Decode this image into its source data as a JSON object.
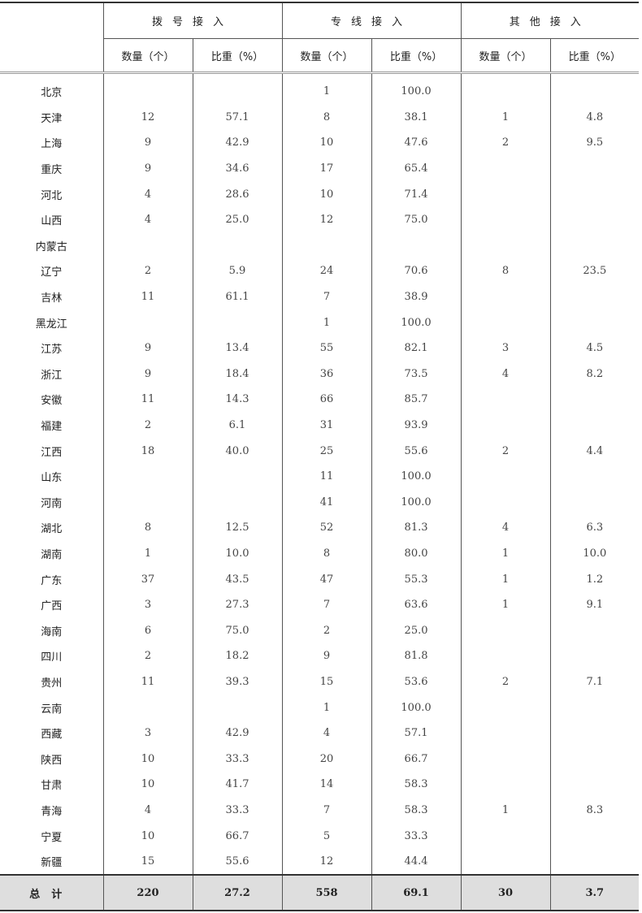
{
  "headers": {
    "groups": [
      "拨号接入",
      "专线接入",
      "其他接入"
    ],
    "sub": [
      "数量（个）",
      "比重（%）",
      "数量（个）",
      "比重（%）",
      "数量（个）",
      "比重（%）"
    ]
  },
  "rows": [
    [
      "北京",
      "",
      "",
      "1",
      "100.0",
      "",
      ""
    ],
    [
      "天津",
      "12",
      "57.1",
      "8",
      "38.1",
      "1",
      "4.8"
    ],
    [
      "上海",
      "9",
      "42.9",
      "10",
      "47.6",
      "2",
      "9.5"
    ],
    [
      "重庆",
      "9",
      "34.6",
      "17",
      "65.4",
      "",
      ""
    ],
    [
      "河北",
      "4",
      "28.6",
      "10",
      "71.4",
      "",
      ""
    ],
    [
      "山西",
      "4",
      "25.0",
      "12",
      "75.0",
      "",
      ""
    ],
    [
      "内蒙古",
      "",
      "",
      "",
      "",
      "",
      ""
    ],
    [
      "辽宁",
      "2",
      "5.9",
      "24",
      "70.6",
      "8",
      "23.5"
    ],
    [
      "吉林",
      "11",
      "61.1",
      "7",
      "38.9",
      "",
      ""
    ],
    [
      "黑龙江",
      "",
      "",
      "1",
      "100.0",
      "",
      ""
    ],
    [
      "江苏",
      "9",
      "13.4",
      "55",
      "82.1",
      "3",
      "4.5"
    ],
    [
      "浙江",
      "9",
      "18.4",
      "36",
      "73.5",
      "4",
      "8.2"
    ],
    [
      "安徽",
      "11",
      "14.3",
      "66",
      "85.7",
      "",
      ""
    ],
    [
      "福建",
      "2",
      "6.1",
      "31",
      "93.9",
      "",
      ""
    ],
    [
      "江西",
      "18",
      "40.0",
      "25",
      "55.6",
      "2",
      "4.4"
    ],
    [
      "山东",
      "",
      "",
      "11",
      "100.0",
      "",
      ""
    ],
    [
      "河南",
      "",
      "",
      "41",
      "100.0",
      "",
      ""
    ],
    [
      "湖北",
      "8",
      "12.5",
      "52",
      "81.3",
      "4",
      "6.3"
    ],
    [
      "湖南",
      "1",
      "10.0",
      "8",
      "80.0",
      "1",
      "10.0"
    ],
    [
      "广东",
      "37",
      "43.5",
      "47",
      "55.3",
      "1",
      "1.2"
    ],
    [
      "广西",
      "3",
      "27.3",
      "7",
      "63.6",
      "1",
      "9.1"
    ],
    [
      "海南",
      "6",
      "75.0",
      "2",
      "25.0",
      "",
      ""
    ],
    [
      "四川",
      "2",
      "18.2",
      "9",
      "81.8",
      "",
      ""
    ],
    [
      "贵州",
      "11",
      "39.3",
      "15",
      "53.6",
      "2",
      "7.1"
    ],
    [
      "云南",
      "",
      "",
      "1",
      "100.0",
      "",
      ""
    ],
    [
      "西藏",
      "3",
      "42.9",
      "4",
      "57.1",
      "",
      ""
    ],
    [
      "陕西",
      "10",
      "33.3",
      "20",
      "66.7",
      "",
      ""
    ],
    [
      "甘肃",
      "10",
      "41.7",
      "14",
      "58.3",
      "",
      ""
    ],
    [
      "青海",
      "4",
      "33.3",
      "7",
      "58.3",
      "1",
      "8.3"
    ],
    [
      "宁夏",
      "10",
      "66.7",
      "5",
      "33.3",
      "",
      ""
    ],
    [
      "新疆",
      "15",
      "55.6",
      "12",
      "44.4",
      "",
      ""
    ]
  ],
  "total": [
    "总计",
    "220",
    "27.2",
    "558",
    "69.1",
    "30",
    "3.7"
  ]
}
